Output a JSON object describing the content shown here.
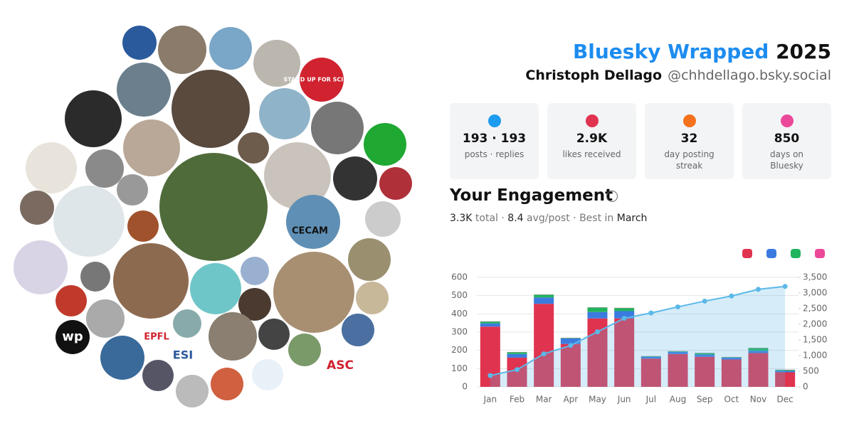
{
  "header": {
    "brand": "Bluesky Wrapped",
    "year": "2025",
    "name": "Christoph Dellago",
    "handle": "@chhdellago.bsky.social"
  },
  "stats": [
    {
      "value": "193 · 193",
      "label": "posts · replies",
      "color": "#1d9bf0"
    },
    {
      "value": "2.9K",
      "label": "likes received",
      "color": "#e0334f"
    },
    {
      "value": "32",
      "label": "day posting streak",
      "color": "#f5711b"
    },
    {
      "value": "850",
      "label": "days on Bluesky",
      "color": "#ec4899"
    }
  ],
  "engagement": {
    "title": "Your Engagement",
    "total": "3.3K",
    "total_label": "total",
    "separator": "·",
    "avg": "8.4",
    "avg_label": "avg/post",
    "best_label": "Best in",
    "best": "March"
  },
  "collage": {
    "labels": [
      "CECAM",
      "EPFL",
      "ESI",
      "ASC",
      "wp",
      "STAND UP FOR SCIENCE"
    ]
  },
  "chart_data": {
    "type": "bar",
    "categories": [
      "Jan",
      "Feb",
      "Mar",
      "Apr",
      "May",
      "Jun",
      "Jul",
      "Aug",
      "Sep",
      "Oct",
      "Nov",
      "Dec"
    ],
    "series": [
      {
        "color": "#e0334f",
        "values": [
          330,
          160,
          455,
          235,
          375,
          375,
          155,
          180,
          165,
          150,
          185,
          80
        ]
      },
      {
        "color": "#3b7be0",
        "values": [
          18,
          20,
          35,
          30,
          35,
          40,
          10,
          12,
          12,
          10,
          13,
          8
        ]
      },
      {
        "color": "#22b35e",
        "values": [
          10,
          10,
          15,
          3,
          25,
          17,
          3,
          3,
          8,
          3,
          15,
          5
        ]
      },
      {
        "color": "#ec4899",
        "values": [
          1,
          1,
          1,
          1,
          1,
          1,
          1,
          1,
          1,
          1,
          1,
          1
        ]
      },
      {
        "color": "#5bb8e8",
        "axis": "y2",
        "values": [
          360,
          550,
          1055,
          1323,
          1758,
          2190,
          2360,
          2555,
          2740,
          2903,
          3116,
          3209
        ]
      }
    ],
    "ylim": [
      0,
      600
    ],
    "yticks": [
      0,
      100,
      200,
      300,
      400,
      500,
      600
    ],
    "y2lim": [
      0,
      3500
    ],
    "y2ticks": [
      0,
      500,
      {
        "value": 1000,
        "label": "1,000"
      },
      {
        "value": 1500,
        "label": "1,500"
      },
      {
        "value": 2000,
        "label": "2,000"
      },
      {
        "value": 2500,
        "label": "2,500"
      },
      {
        "value": 3000,
        "label": "3,000"
      },
      {
        "value": 3500,
        "label": "3,500"
      }
    ],
    "grid": true
  }
}
